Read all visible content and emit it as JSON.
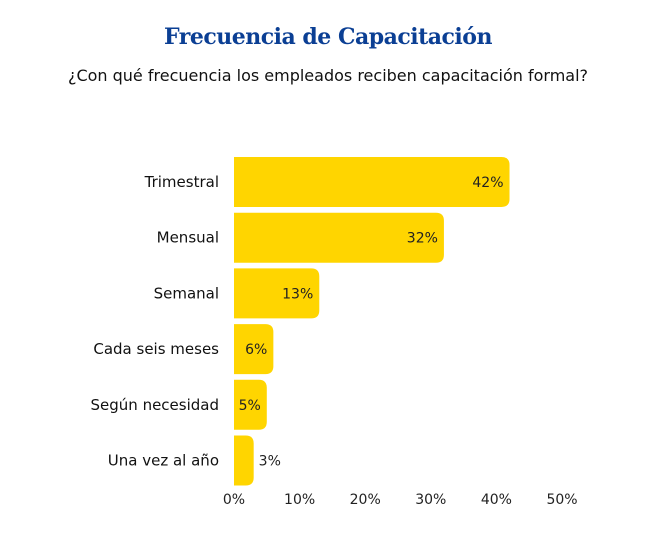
{
  "chart_data": {
    "type": "bar",
    "orientation": "horizontal",
    "title": "Frecuencia de Capacitación",
    "subtitle": "¿Con qué frecuencia los empleados reciben capacitación formal?",
    "categories": [
      "Trimestral",
      "Mensual",
      "Semanal",
      "Cada seis meses",
      "Según necesidad",
      "Una vez al año"
    ],
    "values": [
      42,
      32,
      13,
      6,
      5,
      3
    ],
    "data_labels": [
      "42%",
      "32%",
      "13%",
      "6%",
      "5%",
      "3%"
    ],
    "xlim": [
      0,
      50
    ],
    "x_ticks": [
      "0%",
      "10%",
      "20%",
      "30%",
      "40%",
      "50%"
    ],
    "grid": false,
    "bar_color": "#FFD500",
    "title_color": "#0B3F94"
  }
}
